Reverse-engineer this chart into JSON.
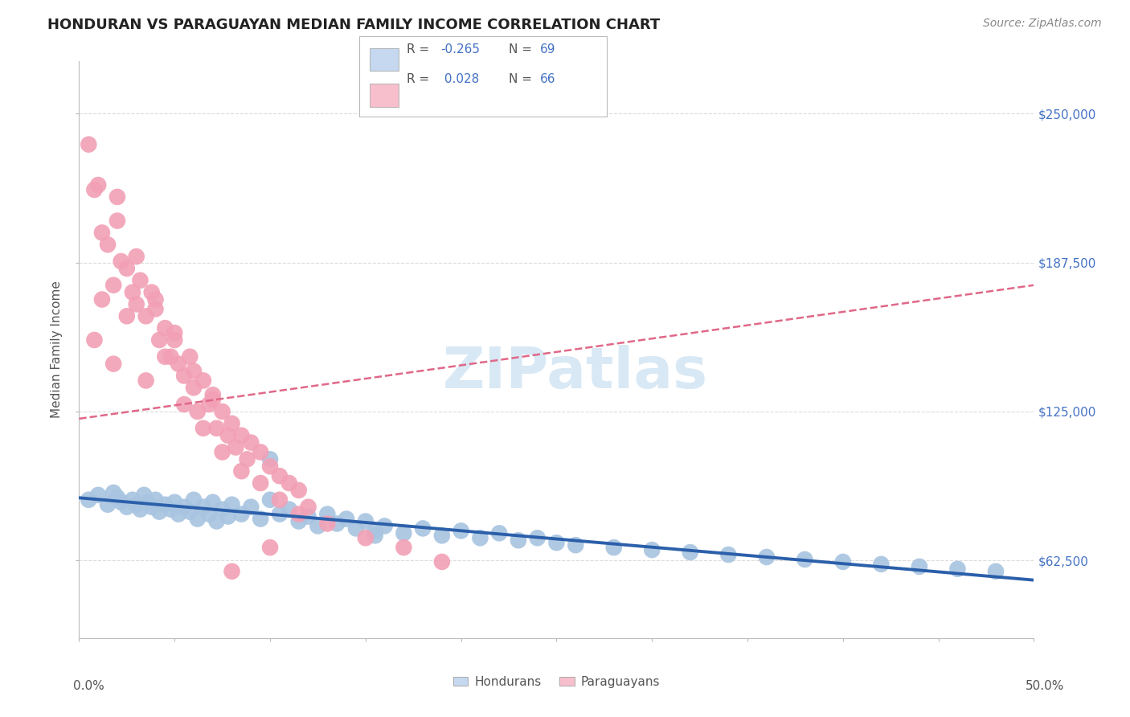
{
  "title": "HONDURAN VS PARAGUAYAN MEDIAN FAMILY INCOME CORRELATION CHART",
  "source": "Source: ZipAtlas.com",
  "ylabel": "Median Family Income",
  "y_ticks": [
    62500,
    125000,
    187500,
    250000
  ],
  "y_tick_labels": [
    "$62,500",
    "$125,000",
    "$187,500",
    "$250,000"
  ],
  "xlim": [
    0.0,
    0.5
  ],
  "ylim": [
    30000,
    272000
  ],
  "blue_scatter_color": "#a8c4e0",
  "pink_scatter_color": "#f2a0b5",
  "blue_line_color": "#2b5faa",
  "pink_line_color": "#e06888",
  "legend_blue_fill": "#c5d8f0",
  "legend_pink_fill": "#f7bfcc",
  "label_color": "#4472c4",
  "title_color": "#222222",
  "source_color": "#888888",
  "axis_label_color": "#555555",
  "grid_color": "#cccccc",
  "watermark_text": "ZIPatlas",
  "watermark_color": "#d8e8f5",
  "background_color": "#ffffff",
  "hondurans_x": [
    0.005,
    0.01,
    0.015,
    0.018,
    0.02,
    0.022,
    0.025,
    0.028,
    0.03,
    0.032,
    0.034,
    0.036,
    0.038,
    0.04,
    0.042,
    0.045,
    0.048,
    0.05,
    0.052,
    0.055,
    0.058,
    0.06,
    0.062,
    0.065,
    0.068,
    0.07,
    0.072,
    0.075,
    0.078,
    0.08,
    0.085,
    0.09,
    0.095,
    0.1,
    0.105,
    0.11,
    0.115,
    0.12,
    0.125,
    0.13,
    0.135,
    0.14,
    0.145,
    0.15,
    0.155,
    0.16,
    0.17,
    0.18,
    0.19,
    0.2,
    0.21,
    0.22,
    0.23,
    0.24,
    0.25,
    0.26,
    0.28,
    0.3,
    0.32,
    0.34,
    0.36,
    0.38,
    0.4,
    0.42,
    0.44,
    0.46,
    0.48,
    0.1,
    0.155
  ],
  "hondurans_y": [
    88000,
    90000,
    86000,
    91000,
    89000,
    87000,
    85000,
    88000,
    86000,
    84000,
    90000,
    87000,
    85000,
    88000,
    83000,
    86000,
    84000,
    87000,
    82000,
    85000,
    83000,
    88000,
    80000,
    85000,
    82000,
    87000,
    79000,
    84000,
    81000,
    86000,
    82000,
    85000,
    80000,
    88000,
    82000,
    84000,
    79000,
    81000,
    77000,
    82000,
    78000,
    80000,
    76000,
    79000,
    75000,
    77000,
    74000,
    76000,
    73000,
    75000,
    72000,
    74000,
    71000,
    72000,
    70000,
    69000,
    68000,
    67000,
    66000,
    65000,
    64000,
    63000,
    62000,
    61000,
    60000,
    59000,
    58000,
    105000,
    73000
  ],
  "paraguayans_x": [
    0.005,
    0.008,
    0.01,
    0.012,
    0.015,
    0.018,
    0.02,
    0.022,
    0.025,
    0.028,
    0.03,
    0.032,
    0.035,
    0.038,
    0.04,
    0.042,
    0.045,
    0.048,
    0.05,
    0.052,
    0.055,
    0.058,
    0.06,
    0.062,
    0.065,
    0.068,
    0.07,
    0.072,
    0.075,
    0.078,
    0.08,
    0.082,
    0.085,
    0.088,
    0.09,
    0.095,
    0.1,
    0.105,
    0.11,
    0.115,
    0.02,
    0.03,
    0.04,
    0.05,
    0.06,
    0.07,
    0.008,
    0.012,
    0.018,
    0.025,
    0.035,
    0.045,
    0.055,
    0.065,
    0.075,
    0.085,
    0.095,
    0.105,
    0.115,
    0.12,
    0.13,
    0.15,
    0.17,
    0.19,
    0.1,
    0.08
  ],
  "paraguayans_y": [
    237000,
    218000,
    220000,
    200000,
    195000,
    178000,
    205000,
    188000,
    185000,
    175000,
    170000,
    180000,
    165000,
    175000,
    168000,
    155000,
    160000,
    148000,
    155000,
    145000,
    140000,
    148000,
    135000,
    125000,
    138000,
    128000,
    132000,
    118000,
    125000,
    115000,
    120000,
    110000,
    115000,
    105000,
    112000,
    108000,
    102000,
    98000,
    95000,
    92000,
    215000,
    190000,
    172000,
    158000,
    142000,
    130000,
    155000,
    172000,
    145000,
    165000,
    138000,
    148000,
    128000,
    118000,
    108000,
    100000,
    95000,
    88000,
    82000,
    85000,
    78000,
    72000,
    68000,
    62000,
    68000,
    58000
  ]
}
